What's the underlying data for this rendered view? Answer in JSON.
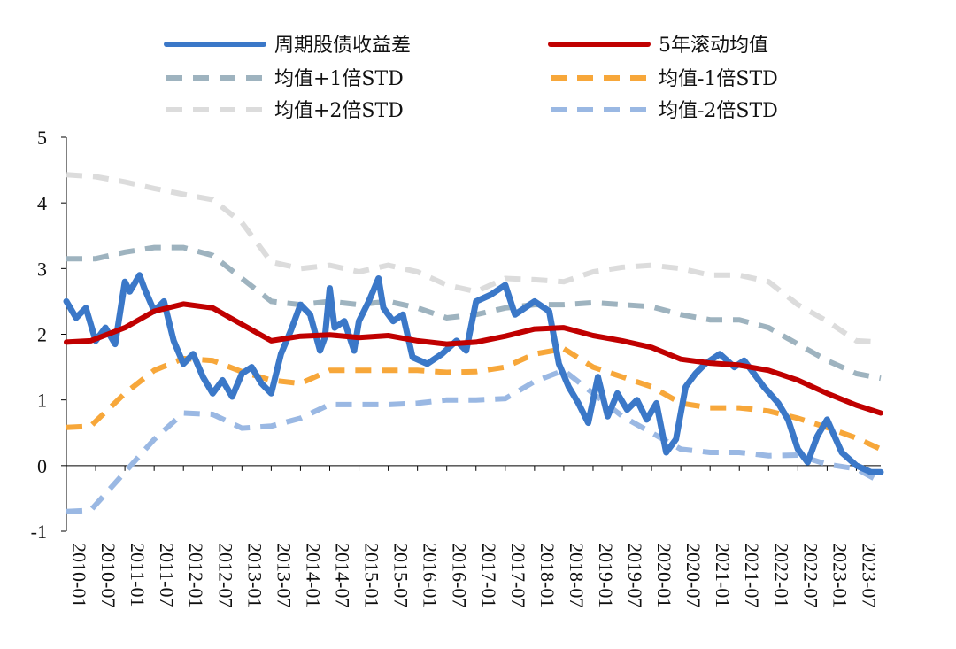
{
  "chart_data": {
    "type": "line",
    "x_tick_labels": [
      "2010-01",
      "2010-07",
      "2011-01",
      "2011-07",
      "2012-01",
      "2012-07",
      "2013-01",
      "2013-07",
      "2014-01",
      "2014-07",
      "2015-01",
      "2015-07",
      "2016-01",
      "2016-07",
      "2017-01",
      "2017-07",
      "2018-01",
      "2018-07",
      "2019-01",
      "2019-07",
      "2020-01",
      "2020-07",
      "2021-01",
      "2021-07",
      "2022-01",
      "2022-07",
      "2023-01",
      "2023-07"
    ],
    "y_ticks": [
      5,
      4,
      3,
      2,
      1,
      0,
      -1
    ],
    "ylim": [
      -1,
      5
    ],
    "xlim": [
      "2010-01",
      "2023-12"
    ],
    "legend": {
      "placement": "top",
      "columns": 2
    },
    "series": [
      {
        "name": "周期股债收益差",
        "color": "#3b78c8",
        "style": "solid-thick",
        "points": [
          [
            "2010-01",
            2.5
          ],
          [
            "2010-03",
            2.25
          ],
          [
            "2010-05",
            2.4
          ],
          [
            "2010-07",
            1.9
          ],
          [
            "2010-09",
            2.1
          ],
          [
            "2010-11",
            1.85
          ],
          [
            "2011-01",
            2.8
          ],
          [
            "2011-02",
            2.65
          ],
          [
            "2011-04",
            2.9
          ],
          [
            "2011-05",
            2.7
          ],
          [
            "2011-07",
            2.35
          ],
          [
            "2011-09",
            2.5
          ],
          [
            "2011-11",
            1.9
          ],
          [
            "2012-01",
            1.55
          ],
          [
            "2012-03",
            1.7
          ],
          [
            "2012-05",
            1.35
          ],
          [
            "2012-07",
            1.1
          ],
          [
            "2012-09",
            1.3
          ],
          [
            "2012-11",
            1.05
          ],
          [
            "2013-01",
            1.4
          ],
          [
            "2013-03",
            1.5
          ],
          [
            "2013-05",
            1.25
          ],
          [
            "2013-07",
            1.1
          ],
          [
            "2013-09",
            1.7
          ],
          [
            "2013-11",
            2.05
          ],
          [
            "2014-01",
            2.45
          ],
          [
            "2014-03",
            2.3
          ],
          [
            "2014-05",
            1.75
          ],
          [
            "2014-06",
            1.95
          ],
          [
            "2014-07",
            2.7
          ],
          [
            "2014-08",
            2.1
          ],
          [
            "2014-10",
            2.2
          ],
          [
            "2014-12",
            1.75
          ],
          [
            "2015-01",
            2.2
          ],
          [
            "2015-03",
            2.5
          ],
          [
            "2015-05",
            2.85
          ],
          [
            "2015-06",
            2.4
          ],
          [
            "2015-08",
            2.2
          ],
          [
            "2015-10",
            2.3
          ],
          [
            "2015-12",
            1.65
          ],
          [
            "2016-03",
            1.55
          ],
          [
            "2016-06",
            1.7
          ],
          [
            "2016-09",
            1.9
          ],
          [
            "2016-11",
            1.75
          ],
          [
            "2017-01",
            2.5
          ],
          [
            "2017-04",
            2.6
          ],
          [
            "2017-07",
            2.75
          ],
          [
            "2017-09",
            2.3
          ],
          [
            "2017-11",
            2.4
          ],
          [
            "2018-01",
            2.5
          ],
          [
            "2018-04",
            2.35
          ],
          [
            "2018-06",
            1.55
          ],
          [
            "2018-08",
            1.2
          ],
          [
            "2018-10",
            0.95
          ],
          [
            "2018-12",
            0.65
          ],
          [
            "2019-02",
            1.35
          ],
          [
            "2019-04",
            0.75
          ],
          [
            "2019-06",
            1.1
          ],
          [
            "2019-08",
            0.85
          ],
          [
            "2019-10",
            1.0
          ],
          [
            "2019-12",
            0.7
          ],
          [
            "2020-02",
            0.95
          ],
          [
            "2020-04",
            0.2
          ],
          [
            "2020-06",
            0.4
          ],
          [
            "2020-08",
            1.2
          ],
          [
            "2020-10",
            1.4
          ],
          [
            "2020-12",
            1.55
          ],
          [
            "2021-03",
            1.7
          ],
          [
            "2021-06",
            1.5
          ],
          [
            "2021-08",
            1.6
          ],
          [
            "2021-10",
            1.4
          ],
          [
            "2021-12",
            1.2
          ],
          [
            "2022-03",
            0.95
          ],
          [
            "2022-05",
            0.7
          ],
          [
            "2022-07",
            0.25
          ],
          [
            "2022-09",
            0.05
          ],
          [
            "2022-11",
            0.45
          ],
          [
            "2023-01",
            0.7
          ],
          [
            "2023-04",
            0.2
          ],
          [
            "2023-07",
            0.0
          ],
          [
            "2023-10",
            -0.1
          ],
          [
            "2023-12",
            -0.1
          ]
        ]
      },
      {
        "name": "5年滚动均值",
        "color": "#c00000",
        "style": "solid-thick",
        "points": [
          [
            "2010-01",
            1.88
          ],
          [
            "2010-06",
            1.9
          ],
          [
            "2011-01",
            2.1
          ],
          [
            "2011-07",
            2.35
          ],
          [
            "2012-01",
            2.46
          ],
          [
            "2012-07",
            2.4
          ],
          [
            "2013-01",
            2.15
          ],
          [
            "2013-07",
            1.9
          ],
          [
            "2014-01",
            1.97
          ],
          [
            "2014-07",
            1.99
          ],
          [
            "2015-01",
            1.95
          ],
          [
            "2015-07",
            1.98
          ],
          [
            "2016-01",
            1.9
          ],
          [
            "2016-07",
            1.85
          ],
          [
            "2017-01",
            1.88
          ],
          [
            "2017-07",
            1.97
          ],
          [
            "2018-01",
            2.08
          ],
          [
            "2018-07",
            2.1
          ],
          [
            "2019-01",
            1.98
          ],
          [
            "2019-07",
            1.9
          ],
          [
            "2020-01",
            1.8
          ],
          [
            "2020-07",
            1.62
          ],
          [
            "2021-01",
            1.56
          ],
          [
            "2021-07",
            1.53
          ],
          [
            "2022-01",
            1.45
          ],
          [
            "2022-07",
            1.3
          ],
          [
            "2023-01",
            1.1
          ],
          [
            "2023-07",
            0.92
          ],
          [
            "2023-12",
            0.8
          ]
        ]
      },
      {
        "name": "均值+1倍STD",
        "color": "#9eb3bf",
        "style": "dashed",
        "points": [
          [
            "2010-01",
            3.15
          ],
          [
            "2010-07",
            3.15
          ],
          [
            "2011-01",
            3.25
          ],
          [
            "2011-07",
            3.32
          ],
          [
            "2012-01",
            3.32
          ],
          [
            "2012-07",
            3.2
          ],
          [
            "2013-01",
            2.85
          ],
          [
            "2013-07",
            2.5
          ],
          [
            "2014-01",
            2.45
          ],
          [
            "2014-07",
            2.5
          ],
          [
            "2015-01",
            2.45
          ],
          [
            "2015-07",
            2.5
          ],
          [
            "2016-01",
            2.4
          ],
          [
            "2016-07",
            2.25
          ],
          [
            "2017-01",
            2.3
          ],
          [
            "2017-07",
            2.4
          ],
          [
            "2018-01",
            2.45
          ],
          [
            "2018-07",
            2.45
          ],
          [
            "2019-01",
            2.48
          ],
          [
            "2019-07",
            2.45
          ],
          [
            "2020-01",
            2.42
          ],
          [
            "2020-07",
            2.3
          ],
          [
            "2021-01",
            2.22
          ],
          [
            "2021-07",
            2.22
          ],
          [
            "2022-01",
            2.1
          ],
          [
            "2022-07",
            1.85
          ],
          [
            "2023-01",
            1.6
          ],
          [
            "2023-07",
            1.4
          ],
          [
            "2023-12",
            1.33
          ]
        ]
      },
      {
        "name": "均值-1倍STD",
        "color": "#f7a73a",
        "style": "dashed",
        "points": [
          [
            "2010-01",
            0.58
          ],
          [
            "2010-06",
            0.6
          ],
          [
            "2011-01",
            1.1
          ],
          [
            "2011-07",
            1.45
          ],
          [
            "2012-01",
            1.63
          ],
          [
            "2012-07",
            1.6
          ],
          [
            "2013-01",
            1.43
          ],
          [
            "2013-07",
            1.3
          ],
          [
            "2014-01",
            1.25
          ],
          [
            "2014-07",
            1.45
          ],
          [
            "2015-01",
            1.45
          ],
          [
            "2015-07",
            1.45
          ],
          [
            "2016-01",
            1.45
          ],
          [
            "2016-07",
            1.42
          ],
          [
            "2017-01",
            1.43
          ],
          [
            "2017-07",
            1.5
          ],
          [
            "2018-01",
            1.7
          ],
          [
            "2018-07",
            1.78
          ],
          [
            "2019-01",
            1.5
          ],
          [
            "2019-07",
            1.35
          ],
          [
            "2020-01",
            1.2
          ],
          [
            "2020-07",
            0.95
          ],
          [
            "2021-01",
            0.88
          ],
          [
            "2021-07",
            0.88
          ],
          [
            "2022-01",
            0.83
          ],
          [
            "2022-07",
            0.72
          ],
          [
            "2023-01",
            0.58
          ],
          [
            "2023-07",
            0.42
          ],
          [
            "2023-12",
            0.25
          ]
        ]
      },
      {
        "name": "均值+2倍STD",
        "color": "#dcdcdc",
        "style": "dashed",
        "points": [
          [
            "2010-01",
            4.43
          ],
          [
            "2010-07",
            4.4
          ],
          [
            "2011-01",
            4.32
          ],
          [
            "2011-07",
            4.22
          ],
          [
            "2012-01",
            4.13
          ],
          [
            "2012-07",
            4.05
          ],
          [
            "2013-01",
            3.7
          ],
          [
            "2013-07",
            3.1
          ],
          [
            "2014-01",
            3.0
          ],
          [
            "2014-07",
            3.05
          ],
          [
            "2015-01",
            2.95
          ],
          [
            "2015-07",
            3.05
          ],
          [
            "2016-01",
            2.95
          ],
          [
            "2016-07",
            2.75
          ],
          [
            "2017-01",
            2.65
          ],
          [
            "2017-07",
            2.85
          ],
          [
            "2018-01",
            2.83
          ],
          [
            "2018-07",
            2.8
          ],
          [
            "2019-01",
            2.95
          ],
          [
            "2019-07",
            3.02
          ],
          [
            "2020-01",
            3.05
          ],
          [
            "2020-07",
            3.0
          ],
          [
            "2021-01",
            2.9
          ],
          [
            "2021-07",
            2.9
          ],
          [
            "2022-01",
            2.8
          ],
          [
            "2022-07",
            2.45
          ],
          [
            "2023-01",
            2.2
          ],
          [
            "2023-07",
            1.9
          ],
          [
            "2023-12",
            1.88
          ]
        ]
      },
      {
        "name": "均值-2倍STD",
        "color": "#9ab8e3",
        "style": "dashed",
        "points": [
          [
            "2010-01",
            -0.7
          ],
          [
            "2010-06",
            -0.68
          ],
          [
            "2011-01",
            -0.1
          ],
          [
            "2011-07",
            0.4
          ],
          [
            "2012-01",
            0.8
          ],
          [
            "2012-07",
            0.78
          ],
          [
            "2013-01",
            0.57
          ],
          [
            "2013-07",
            0.6
          ],
          [
            "2014-01",
            0.72
          ],
          [
            "2014-07",
            0.93
          ],
          [
            "2015-01",
            0.93
          ],
          [
            "2015-07",
            0.93
          ],
          [
            "2016-01",
            0.95
          ],
          [
            "2016-07",
            1.0
          ],
          [
            "2017-01",
            1.0
          ],
          [
            "2017-07",
            1.02
          ],
          [
            "2018-01",
            1.28
          ],
          [
            "2018-07",
            1.45
          ],
          [
            "2019-01",
            1.1
          ],
          [
            "2019-07",
            0.75
          ],
          [
            "2020-01",
            0.5
          ],
          [
            "2020-07",
            0.25
          ],
          [
            "2021-01",
            0.2
          ],
          [
            "2021-07",
            0.2
          ],
          [
            "2022-01",
            0.15
          ],
          [
            "2022-07",
            0.16
          ],
          [
            "2023-01",
            0.02
          ],
          [
            "2023-07",
            -0.05
          ],
          [
            "2023-12",
            -0.25
          ]
        ]
      }
    ]
  }
}
